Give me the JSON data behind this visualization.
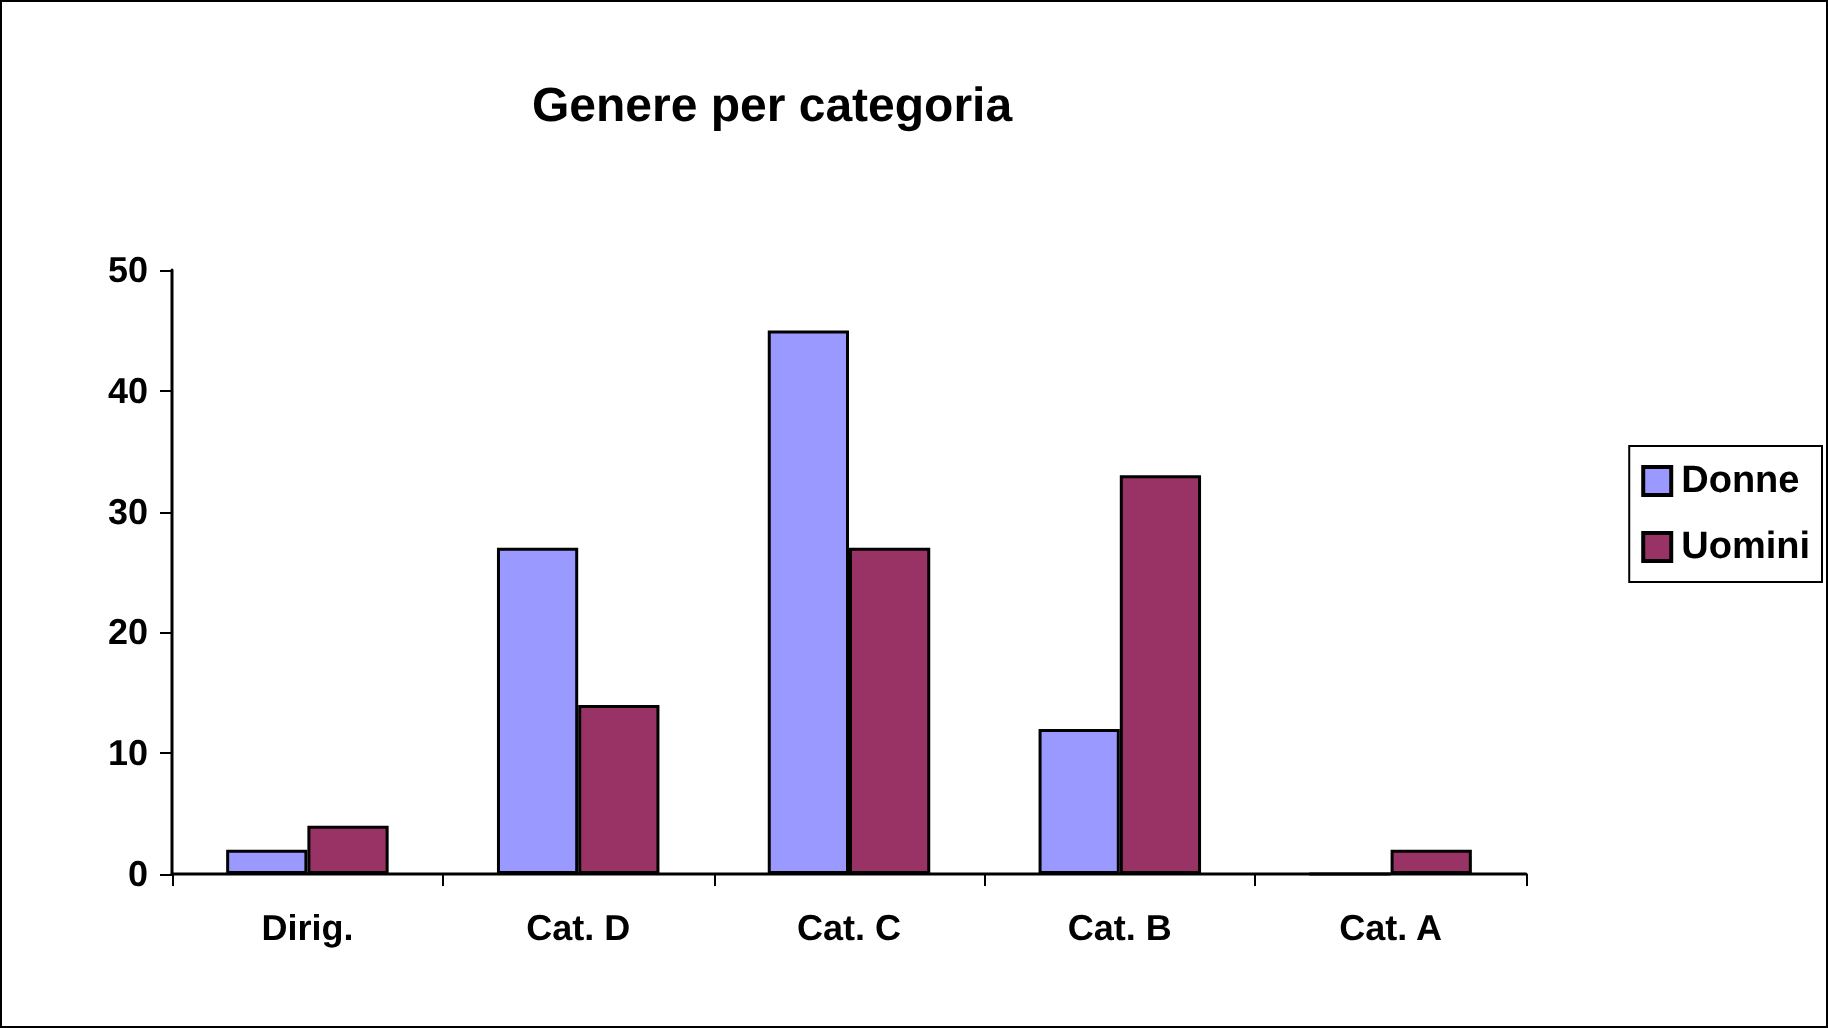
{
  "chart_data": {
    "type": "bar",
    "title": "Genere per categoria",
    "categories": [
      "Dirig.",
      "Cat. D",
      "Cat. C",
      "Cat. B",
      "Cat. A"
    ],
    "series": [
      {
        "name": "Donne",
        "color": "#9999ff",
        "values": [
          2,
          27,
          45,
          12,
          0
        ]
      },
      {
        "name": "Uomini",
        "color": "#993366",
        "values": [
          4,
          14,
          27,
          33,
          2
        ]
      }
    ],
    "ylim": [
      0,
      50
    ],
    "yticks": [
      0,
      10,
      20,
      30,
      40,
      50
    ],
    "grid": false,
    "legend": "right"
  }
}
